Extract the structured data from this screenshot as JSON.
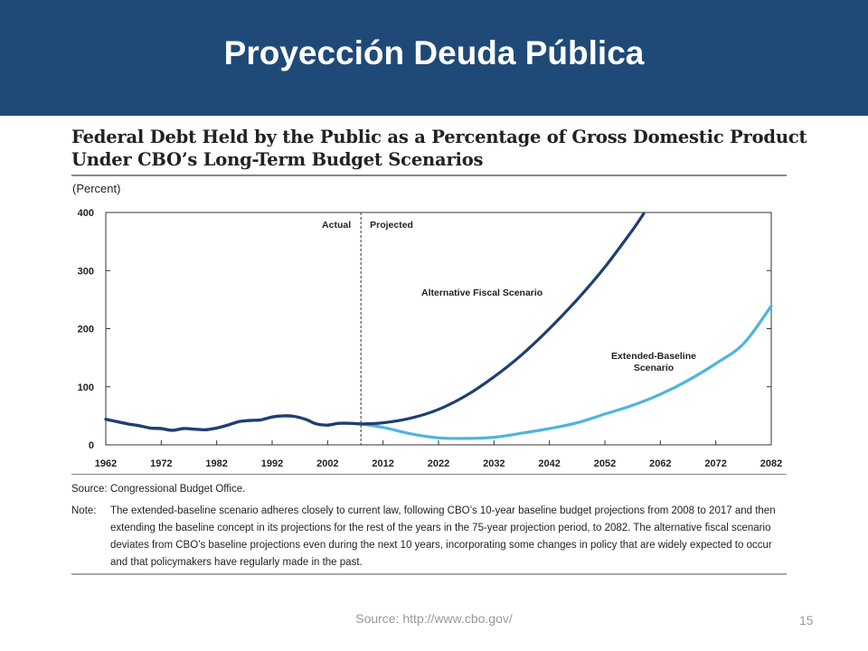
{
  "slide": {
    "title": "Proyección Deuda Pública",
    "footer_source": "Source: http://www.cbo.gov/",
    "page_number": "15",
    "header_color": "#1f4a77"
  },
  "chart_data": {
    "type": "line",
    "title": "Federal Debt Held by the Public as a Percentage of Gross Domestic Product",
    "subtitle": "Under CBO’s Long-Term Budget Scenarios",
    "ylabel": "(Percent)",
    "xlabel": "",
    "xlim": [
      1962,
      2082
    ],
    "ylim": [
      0,
      400
    ],
    "x_ticks": [
      "1962",
      "1972",
      "1982",
      "1992",
      "2002",
      "2012",
      "2022",
      "2032",
      "2042",
      "2052",
      "2062",
      "2072",
      "2082"
    ],
    "y_ticks": [
      "0",
      "100",
      "200",
      "300",
      "400"
    ],
    "divider": {
      "x": 2008,
      "left_label": "Actual",
      "right_label": "Projected"
    },
    "historical": {
      "color": "#1f3f73",
      "x": [
        1962,
        1964,
        1966,
        1968,
        1970,
        1972,
        1974,
        1976,
        1978,
        1980,
        1982,
        1984,
        1986,
        1988,
        1990,
        1992,
        1994,
        1996,
        1998,
        2000,
        2002,
        2004,
        2006,
        2008
      ],
      "y": [
        44,
        40,
        36,
        33,
        29,
        28,
        25,
        28,
        27,
        26,
        29,
        34,
        40,
        42,
        43,
        48,
        50,
        49,
        44,
        36,
        34,
        37,
        37,
        36
      ]
    },
    "series": [
      {
        "name": "Alternative Fiscal Scenario",
        "color": "#1f3f73",
        "x": [
          2008,
          2012,
          2017,
          2022,
          2027,
          2032,
          2037,
          2042,
          2047,
          2052,
          2057,
          2059
        ],
        "y": [
          36,
          38,
          46,
          61,
          85,
          117,
          155,
          200,
          250,
          306,
          370,
          398
        ]
      },
      {
        "name": "Extended-Baseline Scenario",
        "color": "#4fb5dc",
        "x": [
          2008,
          2012,
          2017,
          2022,
          2027,
          2032,
          2037,
          2042,
          2047,
          2052,
          2057,
          2062,
          2067,
          2072,
          2077,
          2082
        ],
        "y": [
          36,
          30,
          19,
          12,
          11,
          13,
          20,
          28,
          38,
          53,
          68,
          87,
          111,
          140,
          174,
          239
        ]
      }
    ],
    "annotations": {
      "alt_label": "Alternative Fiscal Scenario",
      "ext_label_line1": "Extended-Baseline",
      "ext_label_line2": "Scenario"
    },
    "source_label": "Source:",
    "source_text": "Congressional Budget Office.",
    "note_label": "Note:",
    "note_text": "The extended-baseline scenario adheres closely to current law, following CBO’s 10-year baseline budget projections from 2008 to 2017 and then extending the baseline concept in its projections for the rest of the years in the 75-year projection period, to 2082. The alternative fiscal scenario deviates from CBO’s baseline projections even during the next 10 years, incorporating some changes in policy that are widely expected to occur and that policymakers have regularly made in the past."
  }
}
